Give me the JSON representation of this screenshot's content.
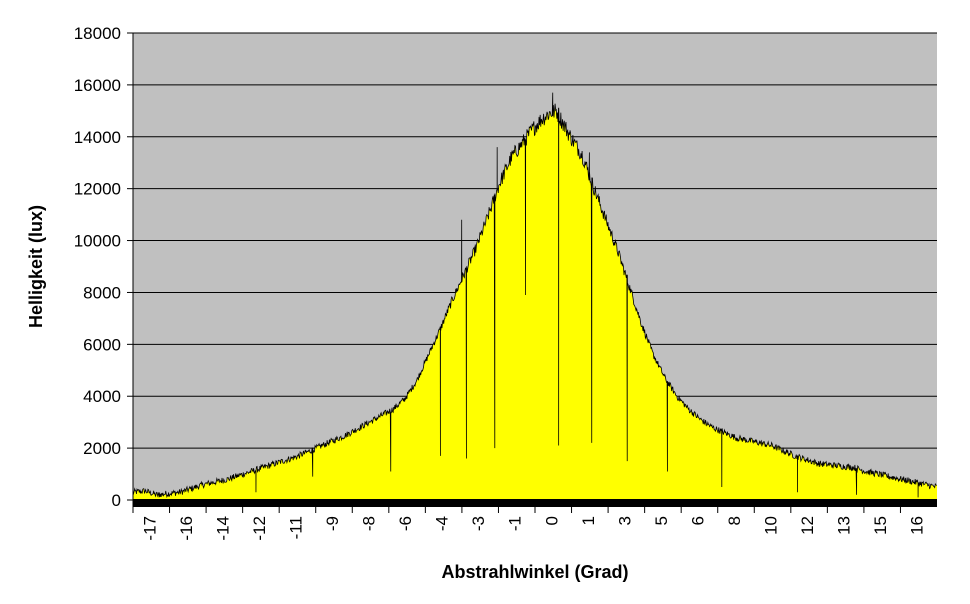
{
  "chart_data": {
    "type": "area",
    "title": "",
    "xlabel": "Abstrahlwinkel (Grad)",
    "ylabel": "Helligkeit (lux)",
    "xlim": [
      -17,
      17
    ],
    "ylim": [
      0,
      18000
    ],
    "y_ticks": [
      0,
      2000,
      4000,
      6000,
      8000,
      10000,
      12000,
      14000,
      16000,
      18000
    ],
    "x_tick_labels": [
      "-17",
      "-16",
      "-14",
      "-12",
      "-11",
      "-9",
      "-8",
      "-6",
      "-4",
      "-3",
      "-1",
      "0",
      "1",
      "3",
      "5",
      "6",
      "8",
      "10",
      "12",
      "13",
      "15",
      "16"
    ],
    "grid": "horizontal",
    "legend": "none",
    "colors": {
      "plot_background": "#c0c0c0",
      "fill": "#ffff00",
      "line": "#000000",
      "baseline": "#000000"
    },
    "series": [
      {
        "x": [
          -17,
          -16.5,
          -16,
          -15.5,
          -15,
          -14.5,
          -14,
          -13.5,
          -13,
          -12.5,
          -12,
          -11.5,
          -11,
          -10.5,
          -10,
          -9.5,
          -9,
          -8.5,
          -8,
          -7.5,
          -7,
          -6.5,
          -6,
          -5.5,
          -5,
          -4.5,
          -4,
          -3.5,
          -3,
          -2.5,
          -2,
          -1.5,
          -1,
          -0.5,
          0,
          0.3,
          0.6,
          0.9,
          1.2,
          1.5,
          2,
          2.5,
          3,
          3.5,
          4,
          4.5,
          5,
          5.5,
          6,
          6.5,
          7,
          7.5,
          8,
          8.5,
          9,
          9.5,
          10,
          10.5,
          11,
          11.5,
          12,
          12.5,
          13,
          13.5,
          14,
          14.5,
          15,
          15.5,
          16,
          16.5,
          17
        ],
        "values": [
          300,
          350,
          200,
          250,
          300,
          450,
          600,
          700,
          800,
          950,
          1100,
          1250,
          1400,
          1550,
          1700,
          1900,
          2100,
          2300,
          2500,
          2750,
          3000,
          3250,
          3500,
          3900,
          4600,
          5600,
          6600,
          7700,
          8700,
          9700,
          10900,
          12200,
          13200,
          13800,
          14400,
          14700,
          14900,
          15000,
          14500,
          14000,
          13300,
          12000,
          10800,
          9600,
          8200,
          6800,
          5600,
          4700,
          4000,
          3500,
          3100,
          2800,
          2600,
          2400,
          2300,
          2200,
          2100,
          1900,
          1700,
          1550,
          1400,
          1350,
          1300,
          1250,
          1100,
          1000,
          900,
          800,
          700,
          600,
          500
        ]
      }
    ],
    "drops": [
      {
        "x": -15.9,
        "y": 100
      },
      {
        "x": -11.8,
        "y": 300
      },
      {
        "x": -9.4,
        "y": 900
      },
      {
        "x": -6.1,
        "y": 1100
      },
      {
        "x": -4.0,
        "y": 1700
      },
      {
        "x": -2.9,
        "y": 1600
      },
      {
        "x": -1.7,
        "y": 2000
      },
      {
        "x": -0.4,
        "y": 7900
      },
      {
        "x": 1.0,
        "y": 2100
      },
      {
        "x": 2.4,
        "y": 2200
      },
      {
        "x": 3.9,
        "y": 1500
      },
      {
        "x": 5.6,
        "y": 1100
      },
      {
        "x": 7.9,
        "y": 500
      },
      {
        "x": 11.1,
        "y": 300
      },
      {
        "x": 13.6,
        "y": 200
      },
      {
        "x": 16.2,
        "y": 100
      }
    ],
    "spikes": [
      {
        "x": -3.1,
        "y": 10800
      },
      {
        "x": -1.6,
        "y": 13600
      },
      {
        "x": 0.75,
        "y": 15700
      },
      {
        "x": 2.3,
        "y": 13400
      }
    ]
  }
}
